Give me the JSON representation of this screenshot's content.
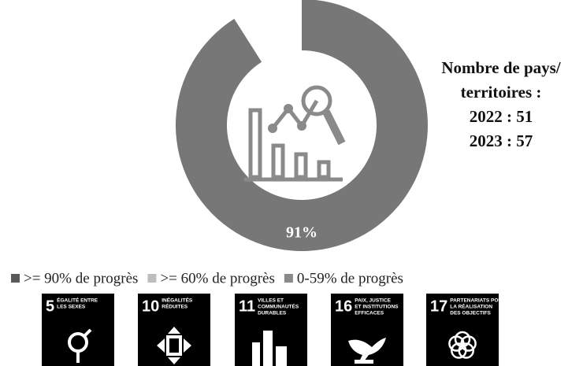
{
  "chart_data": {
    "type": "donut",
    "values": [
      91
    ],
    "value_labels": [
      "91%"
    ],
    "color": "#777777",
    "range": [
      0,
      100
    ],
    "annotations": [
      "Nombre de pays/",
      "territoires :",
      "2022 : 51",
      "2023 : 57"
    ],
    "legend": [
      {
        "name": ">= 90% de progrès",
        "color": "#5a5a5a"
      },
      {
        "name": ">= 60% de progrès",
        "color": "#bdbdbd"
      },
      {
        "name": "0-59% de progrès",
        "color": "#8a8a8a"
      }
    ]
  },
  "goals": [
    {
      "number": "5",
      "title": [
        "ÉGALITÉ ENTRE",
        "LES SEXES"
      ]
    },
    {
      "number": "10",
      "title": [
        "INÉGALITÉS",
        "RÉDUITES"
      ]
    },
    {
      "number": "11",
      "title": [
        "VILLES ET",
        "COMMUNAUTÉS",
        "DURABLES"
      ]
    },
    {
      "number": "16",
      "title": [
        "PAIX, JUSTICE",
        "ET INSTITUTIONS",
        "EFFICACES"
      ]
    },
    {
      "number": "17",
      "title": [
        "PARTENARIATS POUR",
        "LA RÉALISATION",
        "DES OBJECTIFS"
      ]
    }
  ]
}
